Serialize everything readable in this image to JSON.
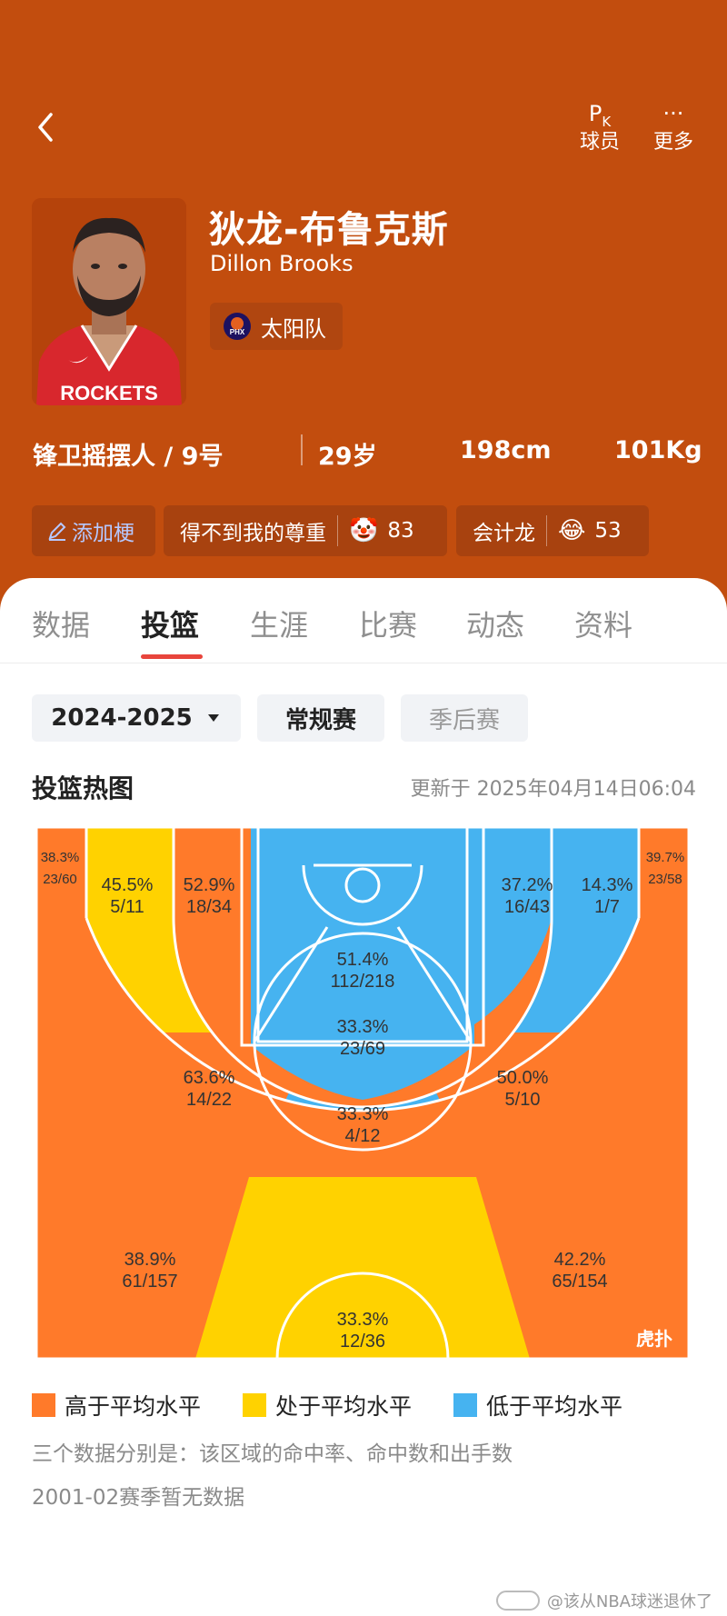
{
  "header": {
    "actions": [
      {
        "label": "球员",
        "icon": "pk-icon",
        "glyph": "P"
      },
      {
        "label": "更多",
        "icon": "more-icon",
        "glyph": "···"
      }
    ],
    "pk_sub": "K"
  },
  "player": {
    "name_cn": "狄龙-布鲁克斯",
    "name_en": "Dillon Brooks",
    "team": "太阳队",
    "team_logo_text": "PHX",
    "jersey_text": "ROCKETS",
    "position": "锋卫摇摆人 / 9号",
    "age": "29岁",
    "height": "198cm",
    "weight": "101Kg"
  },
  "tags": {
    "add_label": "添加梗",
    "items": [
      {
        "text": "得不到我的尊重",
        "emoji": "🤡",
        "count": "83"
      },
      {
        "text": "会计龙",
        "emoji": "😂",
        "count": "53"
      }
    ]
  },
  "tabs": [
    "数据",
    "投篮",
    "生涯",
    "比赛",
    "动态",
    "资料"
  ],
  "active_tab": "投篮",
  "filters": {
    "season": "2024-2025",
    "regular": "常规赛",
    "playoffs": "季后赛"
  },
  "section": {
    "title": "投篮热图",
    "updated": "更新于 2025年04月14日06:04"
  },
  "colors": {
    "header_bg": "#c24d0e",
    "above_avg": "#ff7a2a",
    "avg": "#ffd200",
    "below_avg": "#46b3f0",
    "tab_accent": "#e8453c"
  },
  "zones": [
    {
      "name": "left-corner-three",
      "pct": "38.3%",
      "made_att": "23/60",
      "level": "avg"
    },
    {
      "name": "left-baseline-long-mid",
      "pct": "45.5%",
      "made_att": "5/11",
      "level": "avg"
    },
    {
      "name": "left-short-mid",
      "pct": "52.9%",
      "made_att": "18/34",
      "level": "above"
    },
    {
      "name": "restricted-area",
      "pct": "51.4%",
      "made_att": "112/218",
      "level": "below"
    },
    {
      "name": "right-short-mid",
      "pct": "37.2%",
      "made_att": "16/43",
      "level": "below"
    },
    {
      "name": "right-baseline-long-mid",
      "pct": "14.3%",
      "made_att": "1/7",
      "level": "below"
    },
    {
      "name": "right-corner-three",
      "pct": "39.7%",
      "made_att": "23/58",
      "level": "avg"
    },
    {
      "name": "paint-non-ra",
      "pct": "33.3%",
      "made_att": "23/69",
      "level": "below"
    },
    {
      "name": "left-wing-long-mid",
      "pct": "63.6%",
      "made_att": "14/22",
      "level": "above"
    },
    {
      "name": "right-wing-long-mid",
      "pct": "50.0%",
      "made_att": "5/10",
      "level": "above"
    },
    {
      "name": "top-key-long-mid",
      "pct": "33.3%",
      "made_att": "4/12",
      "level": "below"
    },
    {
      "name": "left-wing-three",
      "pct": "38.9%",
      "made_att": "61/157",
      "level": "above"
    },
    {
      "name": "right-wing-three",
      "pct": "42.2%",
      "made_att": "65/154",
      "level": "above"
    },
    {
      "name": "top-key-three",
      "pct": "33.3%",
      "made_att": "12/36",
      "level": "avg"
    }
  ],
  "court_logo": "虎扑",
  "legend": {
    "above": "高于平均水平",
    "avg": "处于平均水平",
    "below": "低于平均水平"
  },
  "notes": {
    "explain": "三个数据分别是：该区域的命中率、命中数和出手数",
    "nodata": "2001-02赛季暂无数据"
  },
  "watermark": "@该从NBA球迷退休了"
}
